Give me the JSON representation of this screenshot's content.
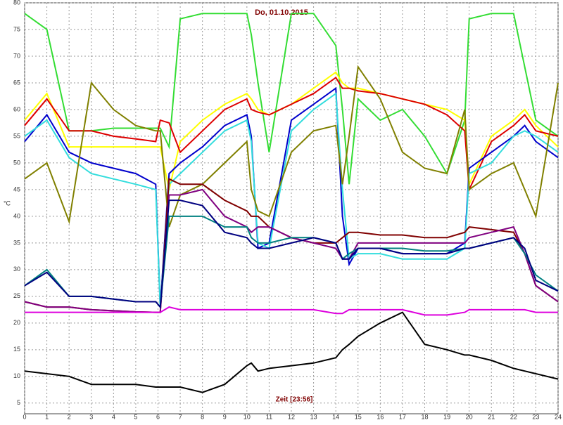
{
  "chart_data": {
    "type": "line",
    "title": "Do, 01.10.2015",
    "x_label": "Zeit [23:56]",
    "y_label": "°C",
    "x": [
      0,
      1,
      2,
      3,
      4,
      5,
      5.9,
      6.1,
      6.5,
      7,
      8,
      9,
      10,
      10.2,
      10.5,
      11,
      12,
      13,
      14,
      14.3,
      14.6,
      15,
      16,
      17,
      18,
      19,
      19.8,
      20,
      21,
      22,
      22.5,
      23,
      24
    ],
    "series": [
      {
        "color": "#33dd33",
        "values": [
          78,
          75,
          56,
          56,
          56.5,
          56.5,
          56.5,
          56.5,
          53,
          77,
          78,
          78,
          78,
          74,
          65,
          52,
          78,
          78,
          72,
          60,
          46,
          62,
          58,
          60,
          55,
          48,
          58,
          77,
          78,
          78,
          68,
          58,
          55
        ]
      },
      {
        "color": "#ffff00",
        "values": [
          58,
          63,
          53,
          53,
          53,
          53,
          53,
          53,
          45,
          54,
          58,
          61,
          63,
          62,
          60,
          59,
          61,
          64,
          67,
          65,
          64,
          64,
          63,
          62,
          61,
          60,
          58,
          46,
          55,
          58,
          60,
          57,
          53
        ]
      },
      {
        "color": "#dd0000",
        "values": [
          57,
          62,
          56,
          56,
          55,
          54.5,
          54,
          58,
          57.5,
          52,
          56,
          60,
          62,
          60,
          59.5,
          59,
          61,
          63,
          66,
          64,
          64,
          63.5,
          63,
          62,
          61,
          59,
          56,
          45,
          54,
          57,
          59,
          56,
          55
        ]
      },
      {
        "color": "#0000cc",
        "values": [
          54,
          59,
          52,
          50,
          49,
          48,
          46,
          23,
          48,
          50,
          53,
          57,
          59,
          55,
          34,
          35,
          58,
          61,
          64,
          40,
          31,
          34,
          34,
          33,
          33,
          33,
          35,
          49,
          52,
          55,
          57,
          54,
          51
        ]
      },
      {
        "color": "#33dddd",
        "values": [
          55,
          58,
          51,
          48,
          47,
          46,
          45,
          23,
          46,
          48,
          52,
          56,
          58,
          54,
          35,
          34,
          56,
          60,
          63,
          45,
          32,
          33,
          33,
          32,
          32,
          32,
          34,
          48,
          50,
          55,
          56,
          55,
          52
        ]
      },
      {
        "color": "#808000",
        "values": [
          47,
          50,
          39,
          65,
          60,
          57,
          56,
          56,
          38,
          44,
          46,
          50,
          54,
          45,
          41,
          40,
          52,
          56,
          57,
          46,
          55,
          68,
          62,
          52,
          49,
          48,
          60,
          45,
          48,
          50,
          45,
          40,
          65
        ]
      },
      {
        "color": "#800000",
        "values": [
          24,
          23,
          23,
          22.5,
          22.3,
          22.1,
          22,
          22,
          47,
          46,
          46,
          43,
          41,
          40,
          40,
          38,
          36,
          35,
          35,
          36,
          37,
          37,
          36.5,
          36.5,
          36,
          36,
          37,
          38,
          37.5,
          37,
          33,
          27,
          24
        ]
      },
      {
        "color": "#800080",
        "values": [
          24,
          23,
          23,
          22.5,
          22.3,
          22.1,
          22,
          22,
          44,
          44,
          45,
          40,
          38,
          37,
          38,
          38,
          36,
          35,
          34,
          32,
          32,
          35,
          35,
          35,
          35,
          35,
          35,
          36,
          37,
          38,
          33,
          27,
          24
        ]
      },
      {
        "color": "#008080",
        "values": [
          27,
          30,
          25,
          25,
          24.5,
          24,
          24,
          23,
          40,
          40,
          40,
          38,
          38,
          36,
          35,
          35,
          36,
          36,
          35,
          32,
          33,
          34,
          34,
          34,
          33.5,
          33.5,
          34,
          34,
          35,
          36,
          33,
          29,
          26
        ]
      },
      {
        "color": "#000080",
        "values": [
          27,
          29.5,
          25,
          25,
          24.5,
          24,
          24,
          23,
          43,
          43,
          42,
          37,
          36,
          35,
          34,
          34,
          35,
          36,
          35,
          32,
          32,
          34,
          34,
          33,
          33,
          33,
          34,
          34,
          35,
          36,
          34,
          28,
          26
        ]
      },
      {
        "color": "#dd00dd",
        "values": [
          22,
          22,
          22,
          22,
          22,
          22,
          22,
          22,
          23,
          22.5,
          22.5,
          22.5,
          22.5,
          22.5,
          22.5,
          22.5,
          22.5,
          22.5,
          21.8,
          21.8,
          22.5,
          22.5,
          22.5,
          22.5,
          21.5,
          21.5,
          22,
          22.5,
          22.5,
          22.5,
          22.5,
          22,
          22
        ]
      },
      {
        "color": "#000000",
        "values": [
          11,
          10.5,
          10,
          8.5,
          8.5,
          8.5,
          8,
          8,
          8,
          8,
          7,
          8.5,
          12,
          12.5,
          11,
          11.5,
          12,
          12.5,
          13.5,
          15,
          16,
          17.5,
          20,
          22,
          16,
          15,
          14,
          14,
          13,
          11.5,
          11,
          10.5,
          9.5
        ]
      }
    ],
    "xlim": [
      0,
      24
    ],
    "ylim": [
      3,
      80
    ],
    "xticks": [
      0,
      1,
      2,
      3,
      4,
      5,
      6,
      7,
      8,
      9,
      10,
      11,
      12,
      13,
      14,
      15,
      16,
      17,
      18,
      19,
      20,
      21,
      22,
      23,
      24
    ],
    "yticks": [
      5,
      10,
      15,
      20,
      25,
      30,
      35,
      40,
      45,
      50,
      55,
      60,
      65,
      70,
      75,
      80
    ],
    "grid": true
  }
}
